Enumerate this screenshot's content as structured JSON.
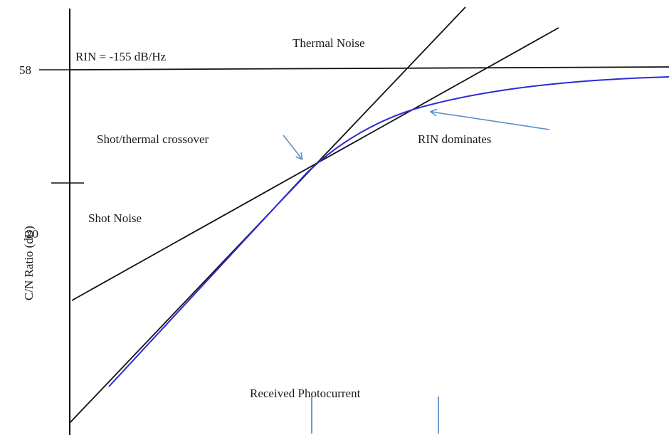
{
  "diagram": {
    "labels": {
      "rin": "RIN = -155 dB/Hz",
      "thermal": "Thermal Noise",
      "crossover": "Shot/thermal crossover",
      "rin_dominates": "RIN dominates",
      "shot": "Shot Noise",
      "photocurrent": "Received  Photocurrent"
    },
    "axis": {
      "y_title": "C/N Ratio (dB)",
      "tick_58": "58",
      "tick_20": "20"
    },
    "colors": {
      "lines": "#111111",
      "curve": "#2b2bd6",
      "arrows": "#5b8fc9"
    }
  }
}
